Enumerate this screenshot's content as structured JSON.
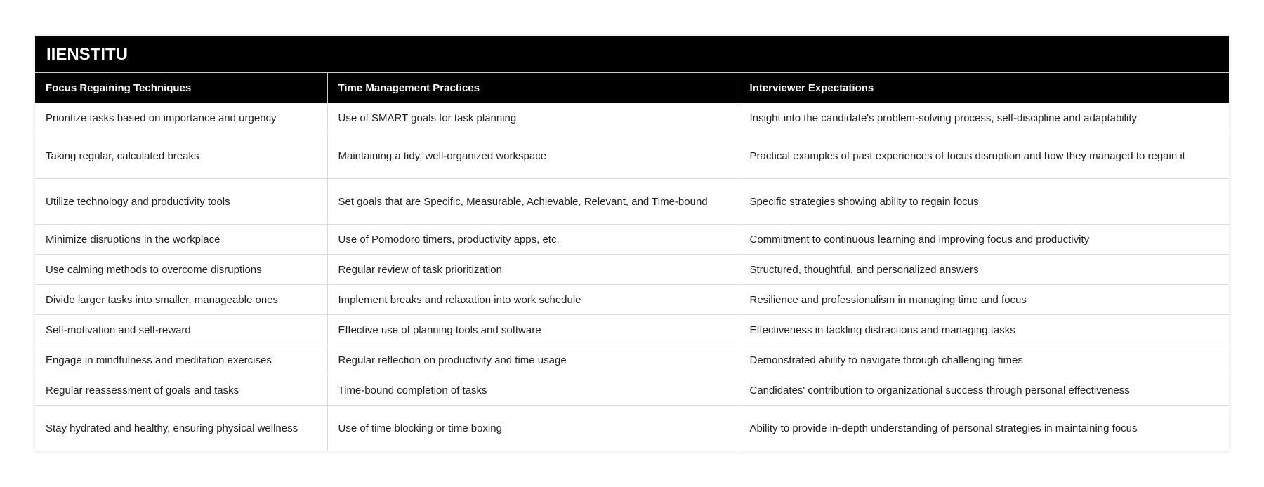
{
  "title": "IIENSTITU",
  "headers": [
    "Focus Regaining Techniques",
    "Time Management Practices",
    "Interviewer Expectations"
  ],
  "rows": [
    [
      "Prioritize tasks based on importance and urgency",
      "Use of SMART goals for task planning",
      "Insight into the candidate's problem-solving process, self-discipline and adaptability"
    ],
    [
      "Taking regular, calculated breaks",
      "Maintaining a tidy, well-organized workspace",
      "Practical examples of past experiences of focus disruption and how they managed to regain it"
    ],
    [
      "Utilize technology and productivity tools",
      "Set goals that are Specific, Measurable, Achievable, Relevant, and Time-bound",
      "Specific strategies showing ability to regain focus"
    ],
    [
      "Minimize disruptions in the workplace",
      "Use of Pomodoro timers, productivity apps, etc.",
      "Commitment to continuous learning and improving focus and productivity"
    ],
    [
      "Use calming methods to overcome disruptions",
      "Regular review of task prioritization",
      "Structured, thoughtful, and personalized answers"
    ],
    [
      "Divide larger tasks into smaller, manageable ones",
      "Implement breaks and relaxation into work schedule",
      "Resilience and professionalism in managing time and focus"
    ],
    [
      "Self-motivation and self-reward",
      "Effective use of planning tools and software",
      "Effectiveness in tackling distractions and managing tasks"
    ],
    [
      "Engage in mindfulness and meditation exercises",
      "Regular reflection on productivity and time usage",
      "Demonstrated ability to navigate through challenging times"
    ],
    [
      "Regular reassessment of goals and tasks",
      "Time-bound completion of tasks",
      "Candidates' contribution to organizational success through personal effectiveness"
    ],
    [
      "Stay hydrated and healthy, ensuring physical wellness",
      "Use of time blocking or time boxing",
      "Ability to provide in-depth understanding of personal strategies in maintaining focus"
    ]
  ]
}
